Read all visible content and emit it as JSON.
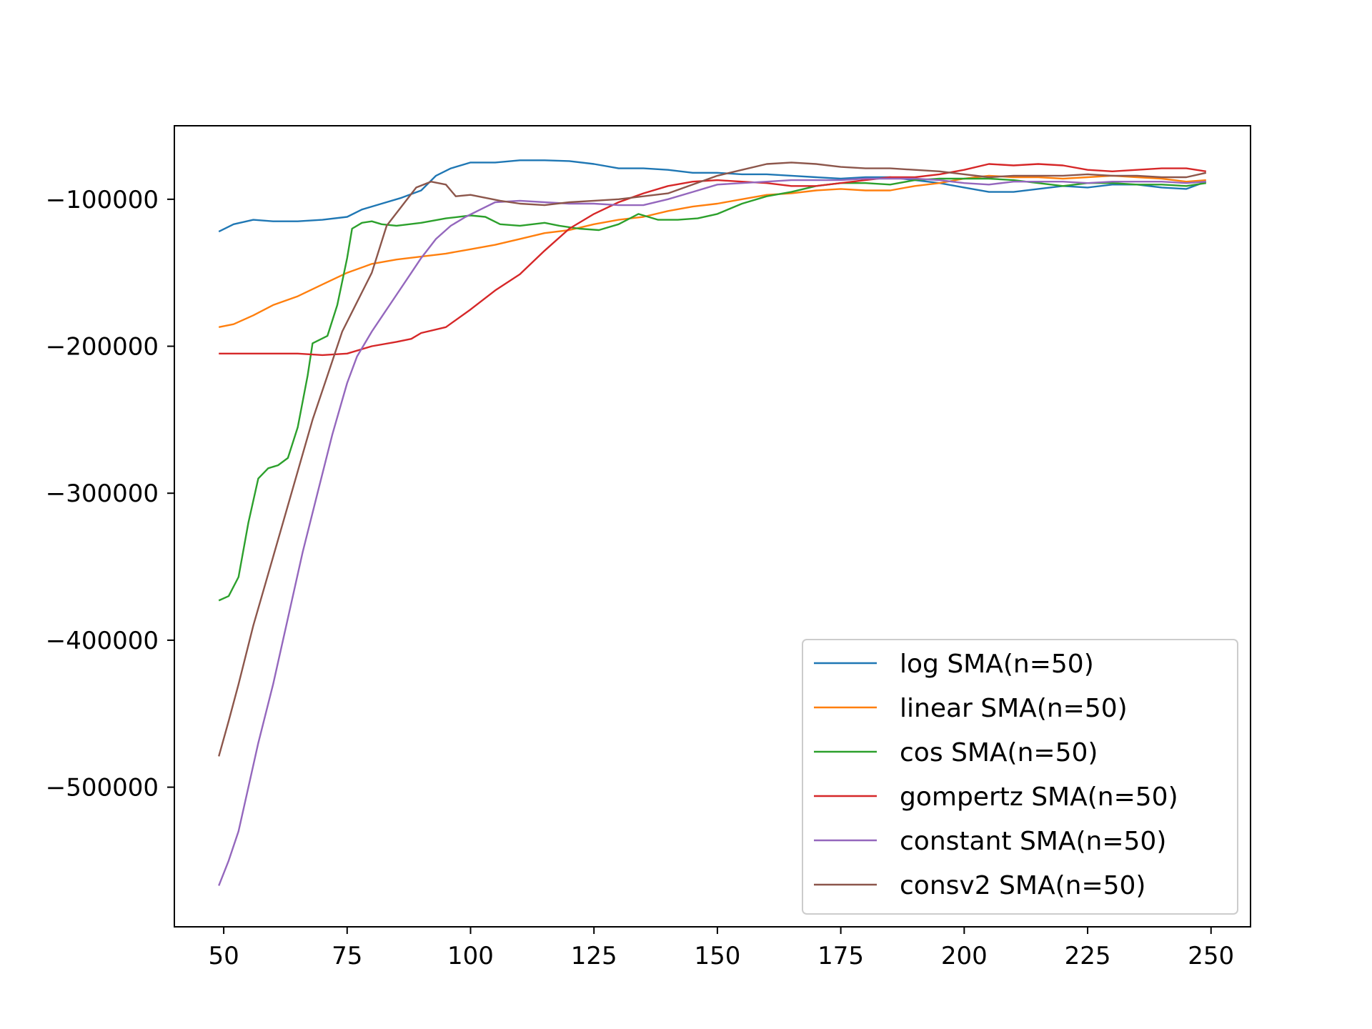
{
  "chart_data": {
    "type": "line",
    "title": "",
    "xlabel": "",
    "ylabel": "",
    "xlim": [
      40,
      258
    ],
    "ylim": [
      -595000,
      -50000
    ],
    "xticks": [
      50,
      75,
      100,
      125,
      150,
      175,
      200,
      225,
      250
    ],
    "xtick_labels": [
      "50",
      "75",
      "100",
      "125",
      "150",
      "175",
      "200",
      "225",
      "250"
    ],
    "yticks": [
      -100000,
      -200000,
      -300000,
      -400000,
      -500000
    ],
    "ytick_labels": [
      "−100000",
      "−200000",
      "−300000",
      "−400000",
      "−500000"
    ],
    "grid": false,
    "legend_position": "lower-right",
    "series": [
      {
        "name": "log SMA(n=50)",
        "color": "#1f77b4",
        "points": [
          [
            49,
            -122000
          ],
          [
            52,
            -117000
          ],
          [
            56,
            -114000
          ],
          [
            60,
            -115000
          ],
          [
            65,
            -115000
          ],
          [
            70,
            -114000
          ],
          [
            75,
            -112000
          ],
          [
            78,
            -107000
          ],
          [
            82,
            -103000
          ],
          [
            86,
            -99000
          ],
          [
            90,
            -94000
          ],
          [
            93,
            -84000
          ],
          [
            96,
            -79000
          ],
          [
            100,
            -75000
          ],
          [
            105,
            -75000
          ],
          [
            110,
            -73500
          ],
          [
            115,
            -73500
          ],
          [
            120,
            -74000
          ],
          [
            125,
            -76000
          ],
          [
            130,
            -79000
          ],
          [
            135,
            -79000
          ],
          [
            140,
            -80000
          ],
          [
            145,
            -82000
          ],
          [
            150,
            -82000
          ],
          [
            155,
            -83000
          ],
          [
            160,
            -83000
          ],
          [
            165,
            -84000
          ],
          [
            170,
            -85000
          ],
          [
            175,
            -86000
          ],
          [
            180,
            -85000
          ],
          [
            185,
            -85000
          ],
          [
            190,
            -87000
          ],
          [
            195,
            -89000
          ],
          [
            200,
            -92000
          ],
          [
            205,
            -95000
          ],
          [
            210,
            -95000
          ],
          [
            215,
            -93000
          ],
          [
            220,
            -91000
          ],
          [
            225,
            -92000
          ],
          [
            230,
            -90000
          ],
          [
            235,
            -90000
          ],
          [
            240,
            -92000
          ],
          [
            245,
            -93000
          ],
          [
            249,
            -88000
          ]
        ]
      },
      {
        "name": "linear SMA(n=50)",
        "color": "#ff7f0e",
        "points": [
          [
            49,
            -187000
          ],
          [
            52,
            -185000
          ],
          [
            56,
            -179000
          ],
          [
            60,
            -172000
          ],
          [
            65,
            -166000
          ],
          [
            70,
            -158000
          ],
          [
            75,
            -150000
          ],
          [
            80,
            -144000
          ],
          [
            85,
            -141000
          ],
          [
            90,
            -139000
          ],
          [
            95,
            -137000
          ],
          [
            100,
            -134000
          ],
          [
            105,
            -131000
          ],
          [
            110,
            -127000
          ],
          [
            115,
            -123000
          ],
          [
            120,
            -121000
          ],
          [
            125,
            -117000
          ],
          [
            130,
            -114000
          ],
          [
            135,
            -112000
          ],
          [
            140,
            -108000
          ],
          [
            145,
            -105000
          ],
          [
            150,
            -103000
          ],
          [
            155,
            -100000
          ],
          [
            160,
            -97000
          ],
          [
            165,
            -96000
          ],
          [
            170,
            -94000
          ],
          [
            175,
            -93000
          ],
          [
            180,
            -94000
          ],
          [
            185,
            -94000
          ],
          [
            190,
            -91000
          ],
          [
            195,
            -89000
          ],
          [
            200,
            -86000
          ],
          [
            205,
            -84000
          ],
          [
            210,
            -85000
          ],
          [
            215,
            -85000
          ],
          [
            220,
            -86000
          ],
          [
            225,
            -85000
          ],
          [
            230,
            -84000
          ],
          [
            235,
            -85000
          ],
          [
            240,
            -86000
          ],
          [
            245,
            -88000
          ],
          [
            249,
            -87000
          ]
        ]
      },
      {
        "name": "cos SMA(n=50)",
        "color": "#2ca02c",
        "points": [
          [
            49,
            -373000
          ],
          [
            51,
            -370000
          ],
          [
            53,
            -357000
          ],
          [
            55,
            -320000
          ],
          [
            57,
            -290000
          ],
          [
            59,
            -283000
          ],
          [
            61,
            -281000
          ],
          [
            63,
            -276000
          ],
          [
            65,
            -255000
          ],
          [
            67,
            -220000
          ],
          [
            68,
            -198000
          ],
          [
            71,
            -193000
          ],
          [
            73,
            -172000
          ],
          [
            75,
            -140000
          ],
          [
            76,
            -120000
          ],
          [
            78,
            -116000
          ],
          [
            80,
            -115000
          ],
          [
            82,
            -117000
          ],
          [
            85,
            -118000
          ],
          [
            90,
            -116000
          ],
          [
            95,
            -113000
          ],
          [
            100,
            -111000
          ],
          [
            103,
            -112000
          ],
          [
            106,
            -117000
          ],
          [
            110,
            -118000
          ],
          [
            115,
            -116000
          ],
          [
            118,
            -118000
          ],
          [
            122,
            -120000
          ],
          [
            126,
            -121000
          ],
          [
            130,
            -117000
          ],
          [
            134,
            -110000
          ],
          [
            138,
            -114000
          ],
          [
            142,
            -114000
          ],
          [
            146,
            -113000
          ],
          [
            150,
            -110000
          ],
          [
            155,
            -103000
          ],
          [
            160,
            -98000
          ],
          [
            165,
            -95000
          ],
          [
            170,
            -91000
          ],
          [
            175,
            -89000
          ],
          [
            180,
            -89000
          ],
          [
            185,
            -90000
          ],
          [
            190,
            -87000
          ],
          [
            195,
            -86000
          ],
          [
            200,
            -86000
          ],
          [
            205,
            -86000
          ],
          [
            210,
            -87000
          ],
          [
            215,
            -89000
          ],
          [
            220,
            -91000
          ],
          [
            225,
            -89000
          ],
          [
            230,
            -89000
          ],
          [
            235,
            -90000
          ],
          [
            240,
            -90000
          ],
          [
            245,
            -91000
          ],
          [
            249,
            -89000
          ]
        ]
      },
      {
        "name": "gompertz SMA(n=50)",
        "color": "#d62728",
        "points": [
          [
            49,
            -205000
          ],
          [
            55,
            -205000
          ],
          [
            60,
            -205000
          ],
          [
            65,
            -205000
          ],
          [
            70,
            -206000
          ],
          [
            75,
            -205000
          ],
          [
            80,
            -200000
          ],
          [
            85,
            -197000
          ],
          [
            88,
            -195000
          ],
          [
            90,
            -191000
          ],
          [
            95,
            -187000
          ],
          [
            100,
            -175000
          ],
          [
            105,
            -162000
          ],
          [
            110,
            -151000
          ],
          [
            115,
            -135000
          ],
          [
            120,
            -120000
          ],
          [
            125,
            -110000
          ],
          [
            130,
            -102000
          ],
          [
            135,
            -96000
          ],
          [
            140,
            -91000
          ],
          [
            145,
            -88000
          ],
          [
            150,
            -87000
          ],
          [
            155,
            -88000
          ],
          [
            160,
            -89000
          ],
          [
            165,
            -91000
          ],
          [
            170,
            -91000
          ],
          [
            175,
            -89000
          ],
          [
            180,
            -87000
          ],
          [
            185,
            -85000
          ],
          [
            190,
            -85000
          ],
          [
            195,
            -83000
          ],
          [
            200,
            -80000
          ],
          [
            205,
            -76000
          ],
          [
            210,
            -77000
          ],
          [
            215,
            -76000
          ],
          [
            220,
            -77000
          ],
          [
            225,
            -80000
          ],
          [
            230,
            -81000
          ],
          [
            235,
            -80000
          ],
          [
            240,
            -79000
          ],
          [
            245,
            -79000
          ],
          [
            249,
            -81000
          ]
        ]
      },
      {
        "name": "constant SMA(n=50)",
        "color": "#9467bd",
        "points": [
          [
            49,
            -567000
          ],
          [
            51,
            -550000
          ],
          [
            53,
            -530000
          ],
          [
            55,
            -500000
          ],
          [
            57,
            -470000
          ],
          [
            60,
            -430000
          ],
          [
            63,
            -385000
          ],
          [
            66,
            -340000
          ],
          [
            69,
            -300000
          ],
          [
            72,
            -260000
          ],
          [
            75,
            -225000
          ],
          [
            77,
            -207000
          ],
          [
            80,
            -190000
          ],
          [
            82,
            -180000
          ],
          [
            85,
            -165000
          ],
          [
            88,
            -150000
          ],
          [
            90,
            -140000
          ],
          [
            93,
            -127000
          ],
          [
            96,
            -118000
          ],
          [
            99,
            -112000
          ],
          [
            102,
            -107000
          ],
          [
            105,
            -102000
          ],
          [
            110,
            -101000
          ],
          [
            115,
            -102000
          ],
          [
            120,
            -103000
          ],
          [
            125,
            -103000
          ],
          [
            130,
            -104000
          ],
          [
            135,
            -104000
          ],
          [
            140,
            -100000
          ],
          [
            145,
            -95000
          ],
          [
            150,
            -90000
          ],
          [
            155,
            -89000
          ],
          [
            160,
            -88000
          ],
          [
            165,
            -87000
          ],
          [
            170,
            -87000
          ],
          [
            175,
            -87000
          ],
          [
            180,
            -86000
          ],
          [
            185,
            -86000
          ],
          [
            190,
            -86000
          ],
          [
            195,
            -87000
          ],
          [
            200,
            -89000
          ],
          [
            205,
            -90000
          ],
          [
            210,
            -88000
          ],
          [
            215,
            -88000
          ],
          [
            220,
            -88000
          ],
          [
            225,
            -89000
          ],
          [
            230,
            -88000
          ],
          [
            235,
            -88000
          ],
          [
            240,
            -88000
          ],
          [
            245,
            -89000
          ],
          [
            249,
            -88000
          ]
        ]
      },
      {
        "name": "consv2 SMA(n=50)",
        "color": "#8c564b",
        "points": [
          [
            49,
            -479000
          ],
          [
            51,
            -455000
          ],
          [
            53,
            -430000
          ],
          [
            56,
            -390000
          ],
          [
            59,
            -355000
          ],
          [
            62,
            -320000
          ],
          [
            65,
            -285000
          ],
          [
            68,
            -250000
          ],
          [
            71,
            -220000
          ],
          [
            74,
            -190000
          ],
          [
            77,
            -170000
          ],
          [
            80,
            -150000
          ],
          [
            83,
            -118000
          ],
          [
            86,
            -105000
          ],
          [
            89,
            -92000
          ],
          [
            92,
            -88000
          ],
          [
            95,
            -90000
          ],
          [
            97,
            -98000
          ],
          [
            100,
            -97000
          ],
          [
            103,
            -99000
          ],
          [
            106,
            -101000
          ],
          [
            110,
            -103000
          ],
          [
            115,
            -104000
          ],
          [
            120,
            -102000
          ],
          [
            125,
            -101000
          ],
          [
            130,
            -100000
          ],
          [
            135,
            -98000
          ],
          [
            140,
            -96000
          ],
          [
            145,
            -90000
          ],
          [
            150,
            -84000
          ],
          [
            155,
            -80000
          ],
          [
            160,
            -76000
          ],
          [
            165,
            -75000
          ],
          [
            170,
            -76000
          ],
          [
            175,
            -78000
          ],
          [
            180,
            -79000
          ],
          [
            185,
            -79000
          ],
          [
            190,
            -80000
          ],
          [
            195,
            -81000
          ],
          [
            200,
            -83000
          ],
          [
            205,
            -85000
          ],
          [
            210,
            -84000
          ],
          [
            215,
            -84000
          ],
          [
            220,
            -84000
          ],
          [
            225,
            -83000
          ],
          [
            230,
            -84000
          ],
          [
            235,
            -84000
          ],
          [
            240,
            -85000
          ],
          [
            245,
            -85000
          ],
          [
            249,
            -82000
          ]
        ]
      }
    ]
  }
}
